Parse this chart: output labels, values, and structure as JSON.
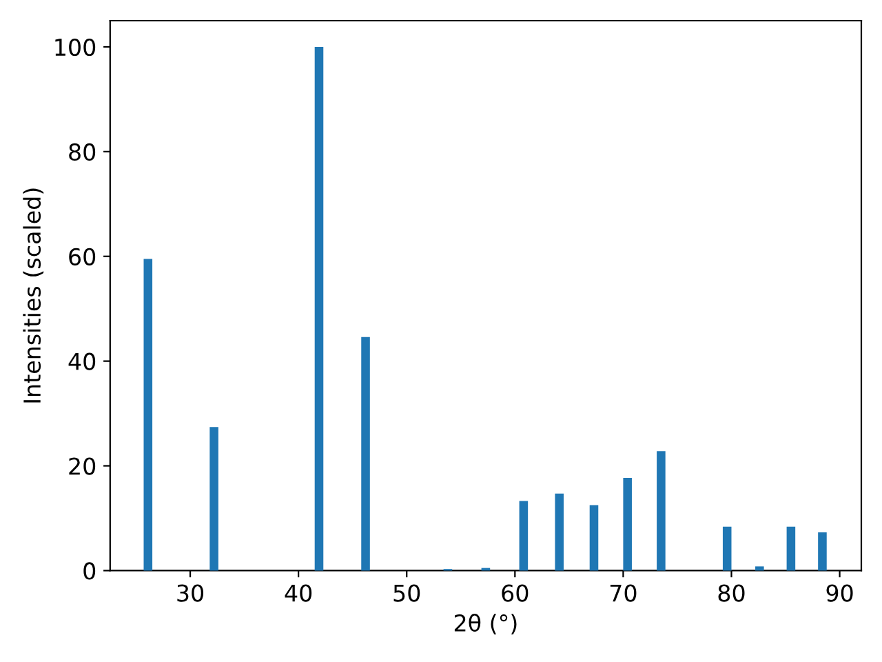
{
  "chart_data": {
    "type": "bar",
    "xlabel": "2θ (°)",
    "ylabel": "Intensities (scaled)",
    "x": [
      26.1,
      32.2,
      41.9,
      46.2,
      53.8,
      57.3,
      60.8,
      64.1,
      67.3,
      70.4,
      73.5,
      79.6,
      82.6,
      85.5,
      88.4
    ],
    "values": [
      59.5,
      27.4,
      100,
      44.6,
      0.3,
      0.5,
      13.3,
      14.7,
      12.5,
      17.7,
      22.8,
      8.4,
      0.8,
      8.4,
      7.3
    ],
    "color": "#1f77b4",
    "xlim": [
      22.6,
      92.0
    ],
    "ylim": [
      0,
      105
    ],
    "xticks": [
      30,
      40,
      50,
      60,
      70,
      80,
      90
    ],
    "yticks": [
      0,
      20,
      40,
      60,
      80,
      100
    ],
    "grid": false,
    "legend": false
  }
}
